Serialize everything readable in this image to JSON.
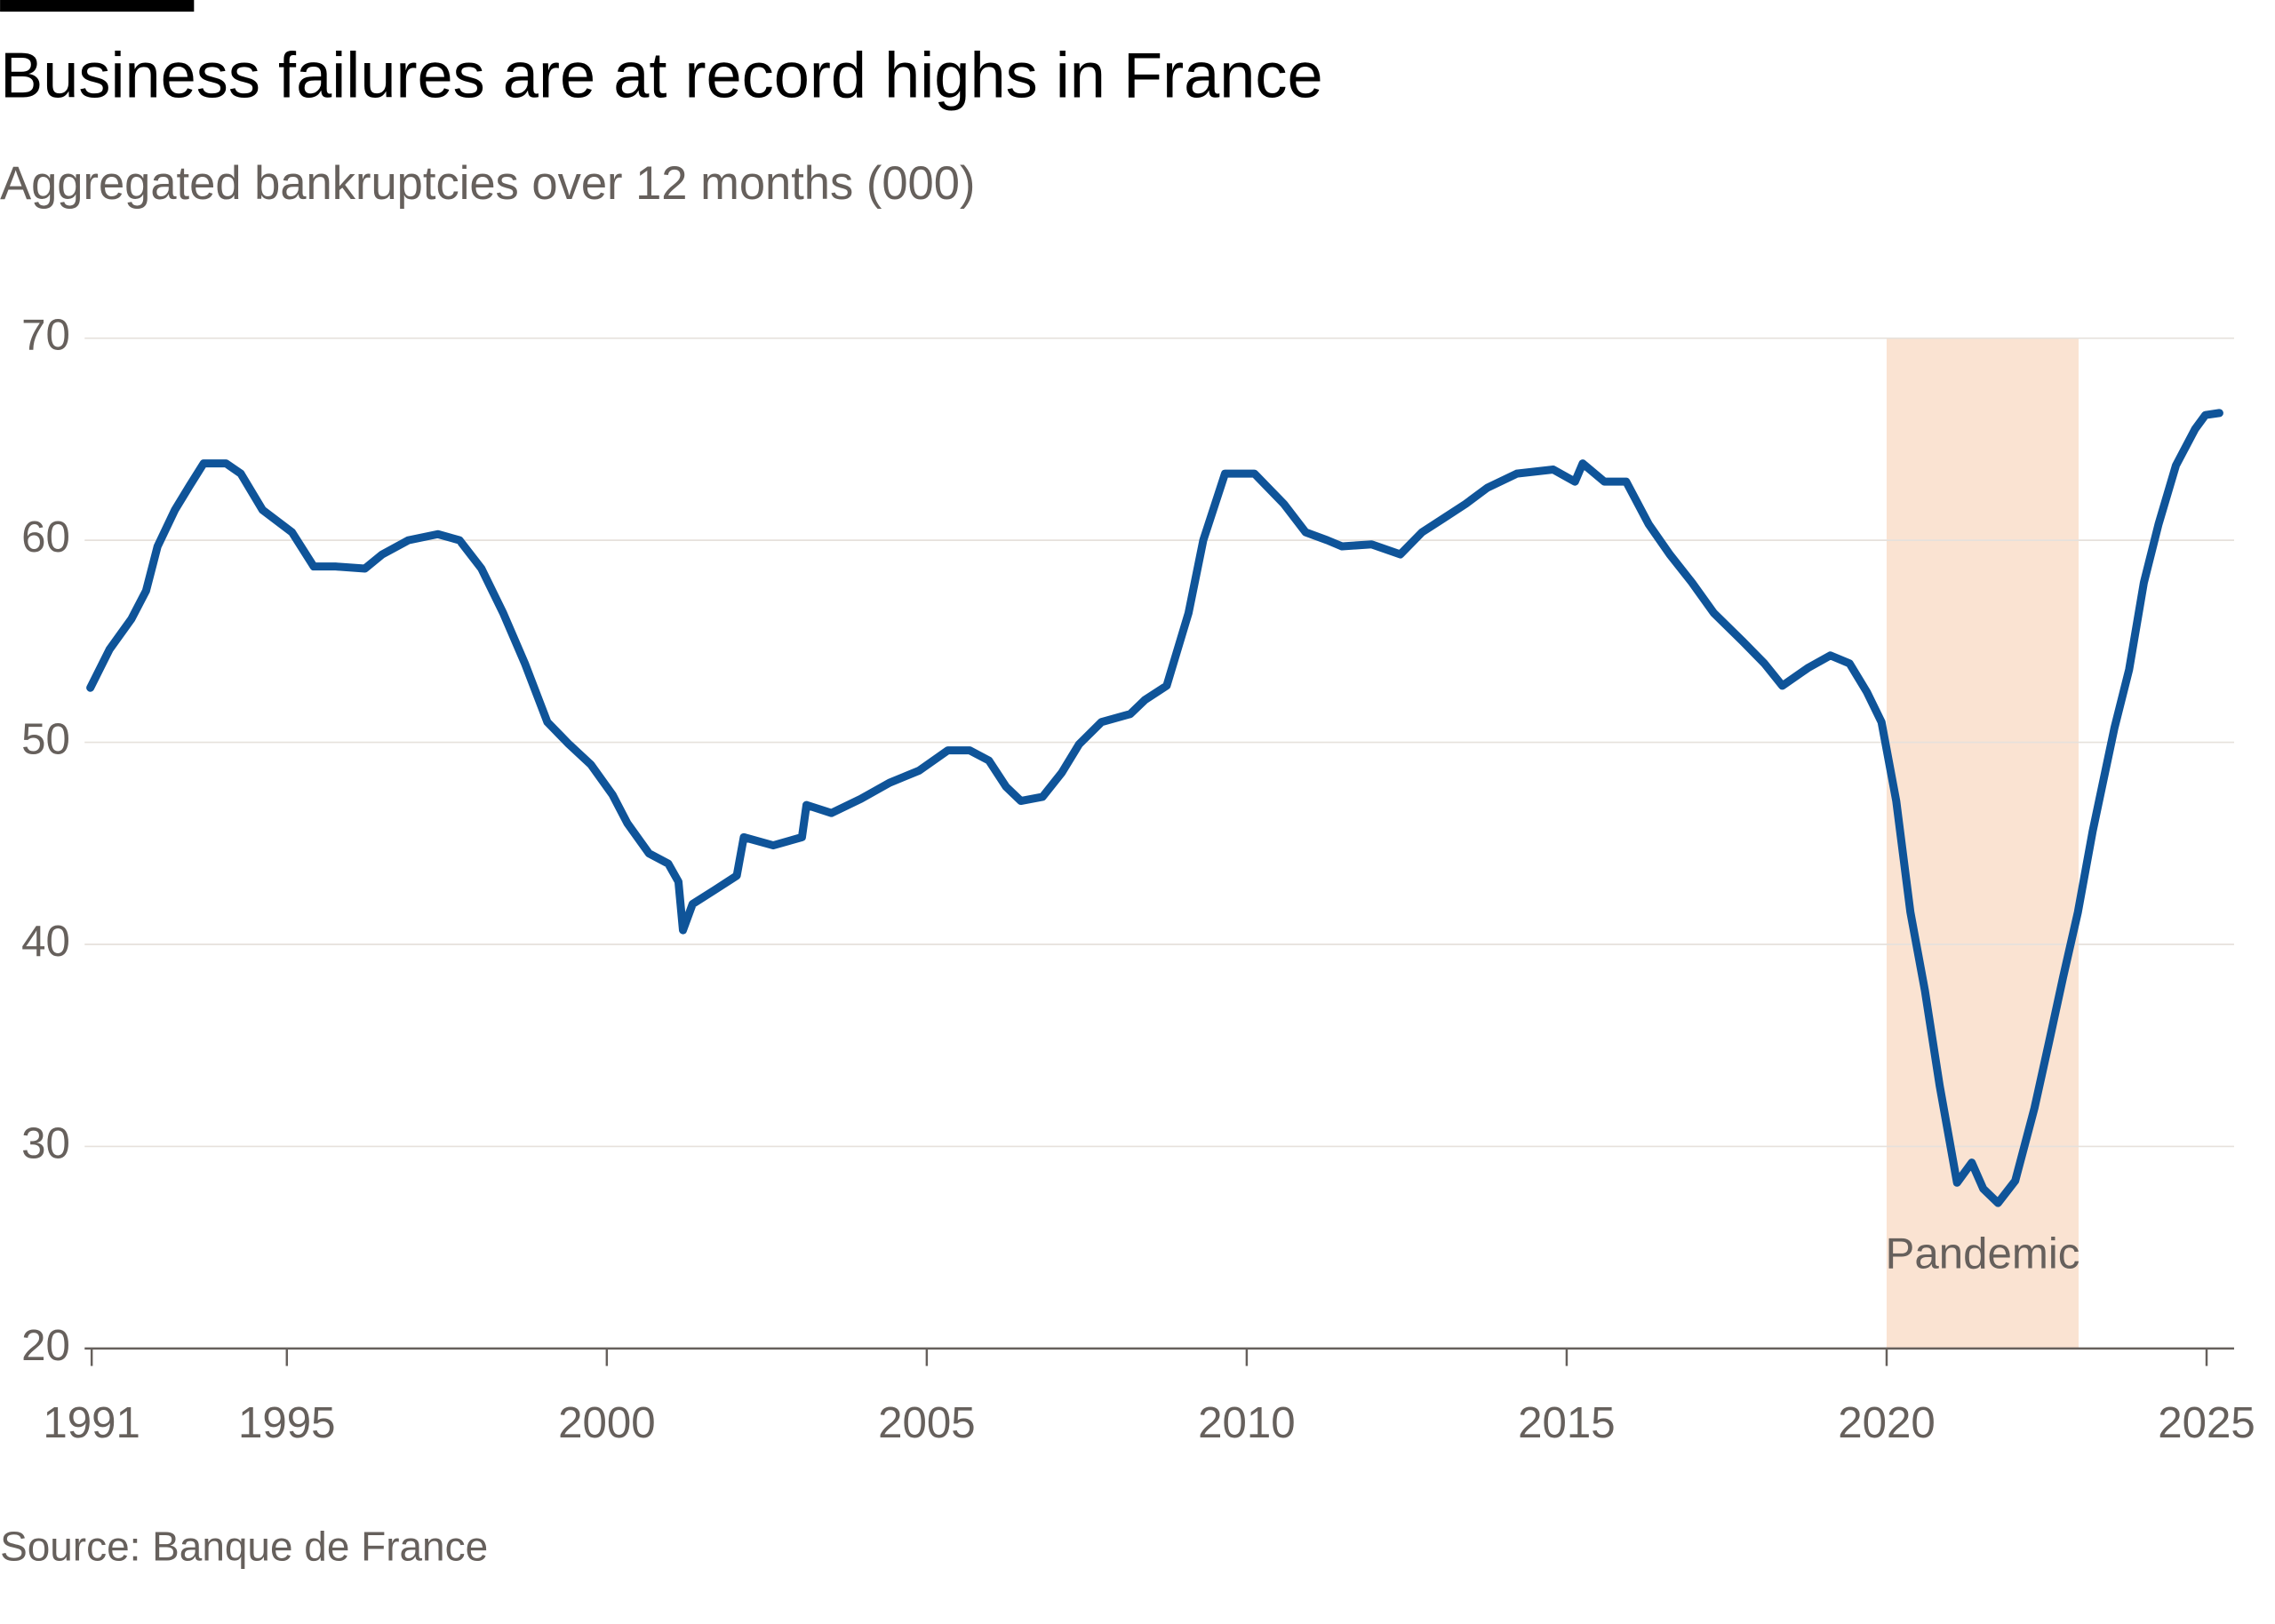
{
  "chart_data": {
    "type": "line",
    "title": "Business failures are at record highs in France",
    "subtitle": "Aggregated bankruptcies over 12 months (000)",
    "source": "Source: Banque de France",
    "xlim": [
      1991.84,
      2025.43
    ],
    "ylim": [
      20,
      70
    ],
    "xticks": [
      {
        "value": 1991.95,
        "label": "1991"
      },
      1995,
      2000,
      2005,
      2010,
      2015,
      2020,
      2025
    ],
    "yticks": [
      20,
      30,
      40,
      50,
      60,
      70
    ],
    "grid": true,
    "shaded_region": {
      "label": "Pandemic",
      "x": [
        2020,
        2023
      ],
      "color": "#fae3d2"
    },
    "series": [
      {
        "name": "Aggregated bankruptcies",
        "color": "#0f5499",
        "x": [
          1991.93,
          1992.23,
          1992.57,
          1992.8,
          1992.98,
          1993.25,
          1993.48,
          1993.7,
          1994.05,
          1994.28,
          1994.62,
          1995.08,
          1995.42,
          1995.76,
          1996.22,
          1996.49,
          1996.9,
          1997.36,
          1997.7,
          1998.04,
          1998.38,
          1998.72,
          1999.07,
          1999.41,
          1999.75,
          2000.09,
          2000.32,
          2000.66,
          2000.96,
          2001.12,
          2001.19,
          2001.34,
          2001.69,
          2002.03,
          2002.14,
          2002.6,
          2003.05,
          2003.12,
          2003.51,
          2003.97,
          2004.42,
          2004.88,
          2005.33,
          2005.67,
          2005.97,
          2006.24,
          2006.47,
          2006.81,
          2007.11,
          2007.38,
          2007.73,
          2008.18,
          2008.41,
          2008.75,
          2009.09,
          2009.32,
          2009.66,
          2010.12,
          2010.58,
          2010.92,
          2011.26,
          2011.49,
          2011.95,
          2012.4,
          2012.74,
          2013.08,
          2013.42,
          2013.76,
          2014.22,
          2014.79,
          2015.13,
          2015.25,
          2015.59,
          2015.93,
          2016.28,
          2016.61,
          2016.96,
          2017.3,
          2017.75,
          2018.09,
          2018.37,
          2018.78,
          2019.12,
          2019.42,
          2019.69,
          2019.92,
          2020.15,
          2020.37,
          2020.6,
          2020.83,
          2021.1,
          2021.33,
          2021.51,
          2021.74,
          2022.01,
          2022.31,
          2022.54,
          2022.76,
          2022.99,
          2023.22,
          2023.56,
          2023.79,
          2024.02,
          2024.25,
          2024.52,
          2024.82,
          2024.98,
          2025.2
        ],
        "values": [
          52.7,
          54.6,
          56.1,
          57.5,
          59.7,
          61.5,
          62.7,
          63.8,
          63.8,
          63.3,
          61.5,
          60.4,
          58.7,
          58.7,
          58.6,
          59.3,
          60.0,
          60.3,
          60.0,
          58.6,
          56.4,
          53.9,
          51.0,
          49.9,
          48.9,
          47.4,
          46.0,
          44.5,
          44.0,
          43.1,
          40.7,
          42.0,
          42.7,
          43.4,
          45.3,
          44.9,
          45.3,
          46.9,
          46.5,
          47.2,
          48.0,
          48.6,
          49.6,
          49.6,
          49.1,
          47.8,
          47.1,
          47.3,
          48.5,
          49.9,
          51.0,
          51.4,
          52.1,
          52.8,
          56.4,
          60.0,
          63.3,
          63.3,
          61.8,
          60.4,
          60.0,
          59.7,
          59.8,
          59.3,
          60.4,
          61.1,
          61.8,
          62.6,
          63.3,
          63.5,
          62.9,
          63.8,
          62.9,
          62.9,
          60.8,
          59.3,
          57.9,
          56.4,
          55.0,
          53.9,
          52.8,
          53.7,
          54.3,
          53.9,
          52.5,
          51.0,
          47.1,
          41.6,
          37.7,
          33.0,
          28.2,
          29.2,
          27.9,
          27.2,
          28.3,
          31.9,
          35.2,
          38.4,
          41.6,
          45.6,
          50.7,
          53.6,
          57.9,
          60.8,
          63.7,
          65.5,
          66.2,
          66.3
        ]
      }
    ]
  }
}
